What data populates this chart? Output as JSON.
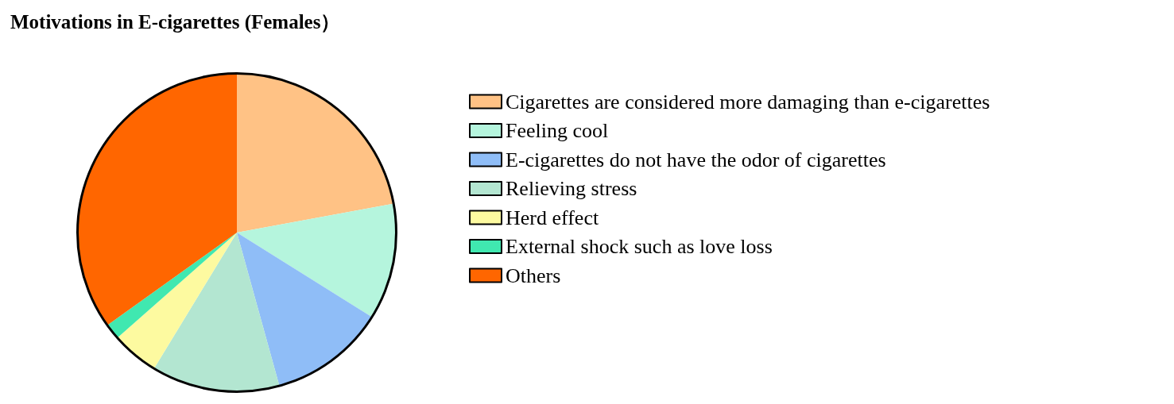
{
  "chart_data": {
    "type": "pie",
    "title": "Motivations in E-cigarettes (Females）",
    "categories": [
      "Cigarettes are considered more damaging than e-cigarettes",
      "Feeling cool",
      "E-cigarettes do not have the odor of cigarettes",
      "Relieving stress",
      "Herd effect",
      "External shock such as love loss",
      "Others"
    ],
    "values": [
      22.1,
      11.8,
      11.8,
      13.0,
      4.8,
      1.6,
      34.9
    ],
    "colors": [
      "#ffc285",
      "#b5f5dd",
      "#8fbdf7",
      "#b3e6d1",
      "#fdfaa0",
      "#40e8b0",
      "#ff6600"
    ],
    "legend": "right"
  }
}
